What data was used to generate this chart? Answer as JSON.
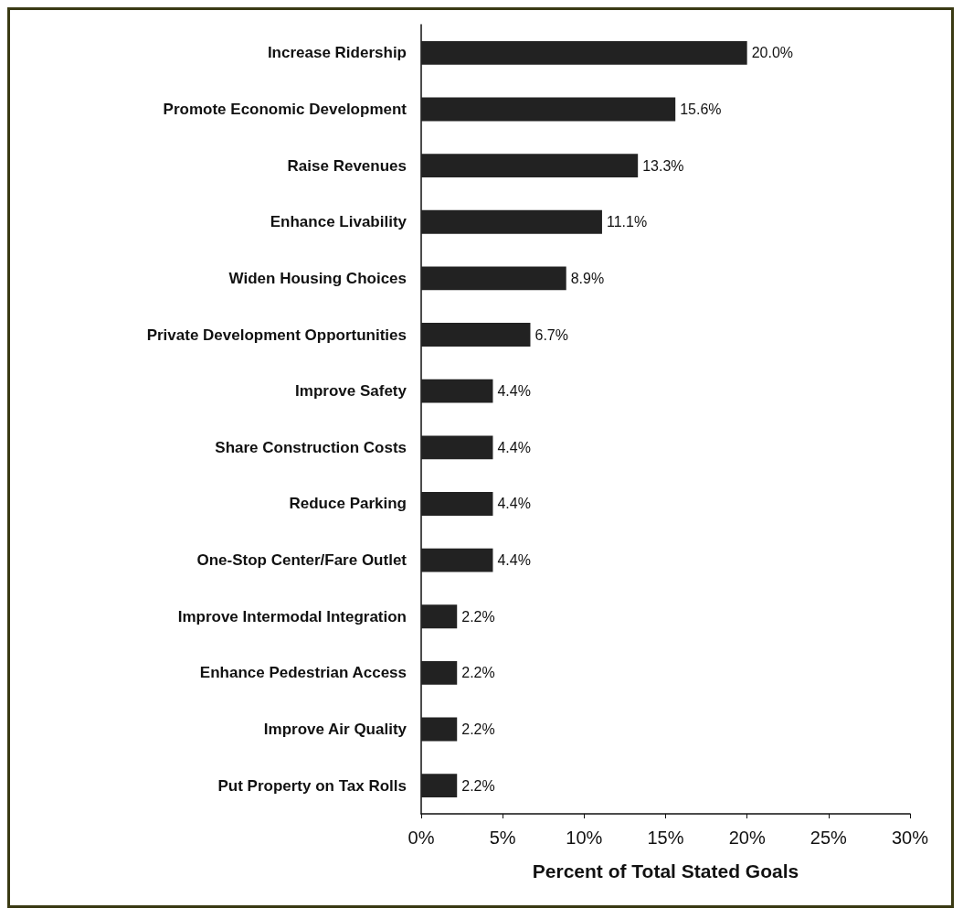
{
  "chart_data": {
    "type": "bar",
    "orientation": "horizontal",
    "xlabel": "Percent of Total Stated Goals",
    "categories": [
      "Increase Ridership",
      "Promote Economic Development",
      "Raise Revenues",
      "Enhance Livability",
      "Widen Housing Choices",
      "Private Development Opportunities",
      "Improve Safety",
      "Share Construction Costs",
      "Reduce Parking",
      "One-Stop Center/Fare Outlet",
      "Improve Intermodal Integration",
      "Enhance Pedestrian Access",
      "Improve Air Quality",
      "Put Property on Tax Rolls"
    ],
    "values": [
      20.0,
      15.6,
      13.3,
      11.1,
      8.9,
      6.7,
      4.4,
      4.4,
      4.4,
      4.4,
      2.2,
      2.2,
      2.2,
      2.2
    ],
    "value_labels": [
      "20.0%",
      "15.6%",
      "13.3%",
      "11.1%",
      "8.9%",
      "6.7%",
      "4.4%",
      "4.4%",
      "4.4%",
      "4.4%",
      "2.2%",
      "2.2%",
      "2.2%",
      "2.2%"
    ],
    "color": "#222222",
    "xlim": [
      0,
      30
    ],
    "xticks": [
      {
        "value": 0,
        "label": "0%"
      },
      {
        "value": 5,
        "label": "5%"
      },
      {
        "value": 10,
        "label": "10%"
      },
      {
        "value": 15,
        "label": "15%"
      },
      {
        "value": 20,
        "label": "20%"
      },
      {
        "value": 25,
        "label": "25%"
      },
      {
        "value": 30,
        "label": "30%"
      }
    ],
    "grid": false
  }
}
